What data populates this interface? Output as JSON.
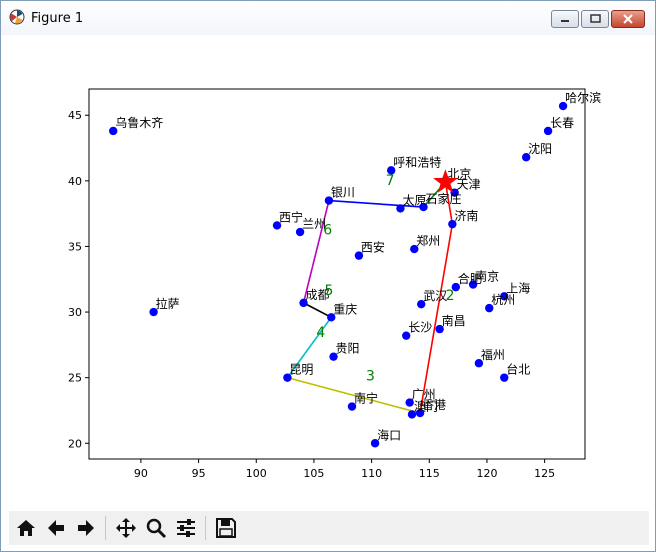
{
  "window": {
    "title": "Figure 1"
  },
  "chart_data": {
    "type": "scatter",
    "xlim": [
      85.5,
      128.5
    ],
    "ylim": [
      18.8,
      47.0
    ],
    "xticks": [
      90,
      95,
      100,
      105,
      110,
      115,
      120,
      125
    ],
    "yticks": [
      20,
      25,
      30,
      35,
      40,
      45
    ],
    "grid": false,
    "cities": [
      {
        "name": "乌鲁木齐",
        "x": 87.6,
        "y": 43.8
      },
      {
        "name": "哈尔滨",
        "x": 126.6,
        "y": 45.7
      },
      {
        "name": "长春",
        "x": 125.3,
        "y": 43.8
      },
      {
        "name": "沈阳",
        "x": 123.4,
        "y": 41.8
      },
      {
        "name": "呼和浩特",
        "x": 111.7,
        "y": 40.8
      },
      {
        "name": "北京",
        "x": 116.4,
        "y": 39.9
      },
      {
        "name": "天津",
        "x": 117.2,
        "y": 39.1
      },
      {
        "name": "银川",
        "x": 106.3,
        "y": 38.5
      },
      {
        "name": "太原",
        "x": 112.5,
        "y": 37.9
      },
      {
        "name": "石家庄",
        "x": 114.5,
        "y": 38.0
      },
      {
        "name": "济南",
        "x": 117.0,
        "y": 36.7
      },
      {
        "name": "西宁",
        "x": 101.8,
        "y": 36.6
      },
      {
        "name": "兰州",
        "x": 103.8,
        "y": 36.1
      },
      {
        "name": "西安",
        "x": 108.9,
        "y": 34.3
      },
      {
        "name": "郑州",
        "x": 113.7,
        "y": 34.8
      },
      {
        "name": "合肥",
        "x": 117.3,
        "y": 31.9
      },
      {
        "name": "南京",
        "x": 118.8,
        "y": 32.1
      },
      {
        "name": "上海",
        "x": 121.5,
        "y": 31.2
      },
      {
        "name": "杭州",
        "x": 120.2,
        "y": 30.3
      },
      {
        "name": "拉萨",
        "x": 91.1,
        "y": 30.0
      },
      {
        "name": "成都",
        "x": 104.1,
        "y": 30.7
      },
      {
        "name": "重庆",
        "x": 106.5,
        "y": 29.6
      },
      {
        "name": "武汉",
        "x": 114.3,
        "y": 30.6
      },
      {
        "name": "长沙",
        "x": 113.0,
        "y": 28.2
      },
      {
        "name": "南昌",
        "x": 115.9,
        "y": 28.7
      },
      {
        "name": "贵阳",
        "x": 106.7,
        "y": 26.6
      },
      {
        "name": "福州",
        "x": 119.3,
        "y": 26.1
      },
      {
        "name": "台北",
        "x": 121.5,
        "y": 25.0
      },
      {
        "name": "昆明",
        "x": 102.7,
        "y": 25.0
      },
      {
        "name": "南宁",
        "x": 108.3,
        "y": 22.8
      },
      {
        "name": "广州",
        "x": 113.3,
        "y": 23.1
      },
      {
        "name": "澳门",
        "x": 113.5,
        "y": 22.2
      },
      {
        "name": "香港",
        "x": 114.2,
        "y": 22.3
      },
      {
        "name": "海口",
        "x": 110.3,
        "y": 20.0
      }
    ],
    "route": [
      {
        "label": "2",
        "color": "#ff0000",
        "from": [
          116.4,
          39.9
        ],
        "to": [
          117.0,
          36.7
        ]
      },
      {
        "label": "2",
        "color": "#ff0000",
        "from": [
          117.0,
          36.7
        ],
        "to": [
          114.2,
          22.3
        ]
      },
      {
        "label": "3",
        "color": "#bfbf00",
        "from": [
          114.2,
          22.3
        ],
        "to": [
          102.7,
          25.0
        ]
      },
      {
        "label": "4",
        "color": "#00bfbf",
        "from": [
          102.7,
          25.0
        ],
        "to": [
          106.5,
          29.6
        ]
      },
      {
        "label": "5",
        "color": "#000000",
        "from": [
          106.5,
          29.6
        ],
        "to": [
          104.1,
          30.7
        ]
      },
      {
        "label": "6",
        "color": "#bf00bf",
        "from": [
          104.1,
          30.7
        ],
        "to": [
          106.3,
          38.5
        ]
      },
      {
        "label": "7",
        "color": "#0000ff",
        "from": [
          106.3,
          38.5
        ],
        "to": [
          114.5,
          38.0
        ]
      },
      {
        "label": "",
        "color": "#008000",
        "from": [
          114.5,
          38.0
        ],
        "to": [
          116.4,
          39.9
        ]
      },
      {
        "label": "",
        "color": "#008000",
        "from": [
          116.4,
          39.9
        ],
        "to": [
          117.2,
          39.1
        ]
      }
    ],
    "step_labels": [
      {
        "text": "2",
        "x": 116.8,
        "y": 30.9
      },
      {
        "text": "3",
        "x": 109.9,
        "y": 24.8
      },
      {
        "text": "4",
        "x": 105.6,
        "y": 28.1
      },
      {
        "text": "5",
        "x": 106.3,
        "y": 31.3
      },
      {
        "text": "6",
        "x": 106.2,
        "y": 35.9
      },
      {
        "text": "7",
        "x": 111.6,
        "y": 39.7
      }
    ],
    "start_marker": {
      "x": 116.4,
      "y": 39.9,
      "shape": "star",
      "color": "#ff0000"
    },
    "point_color": "#0000ff",
    "label_color": "#008000"
  }
}
